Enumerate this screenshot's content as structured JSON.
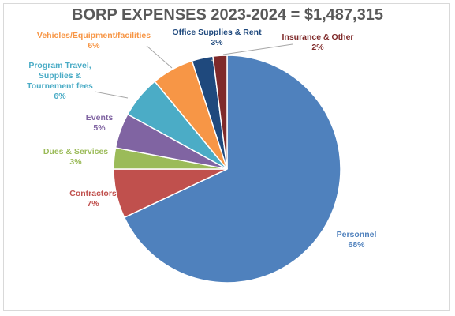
{
  "chart_data": {
    "type": "pie",
    "title": "BORP EXPENSES 2023-2024 = $1,487,315",
    "slices": [
      {
        "label": "Personnel",
        "value": 68,
        "value_label": "68%",
        "color": "#4f81bd"
      },
      {
        "label": "Contractors",
        "value": 7,
        "value_label": "7%",
        "color": "#c0504d"
      },
      {
        "label": "Dues & Services",
        "value": 3,
        "value_label": "3%",
        "color": "#9bbb59"
      },
      {
        "label": "Events",
        "value": 5,
        "value_label": "5%",
        "color": "#8064a2"
      },
      {
        "label": "Program Travel, Supplies & Tournement fees",
        "value": 6,
        "value_label": "6%",
        "color": "#4bacc6"
      },
      {
        "label": "Vehicles/Equipment/facilities",
        "value": 6,
        "value_label": "6%",
        "color": "#f79646"
      },
      {
        "label": "Office Supplies & Rent",
        "value": 3,
        "value_label": "3%",
        "color": "#1f497d"
      },
      {
        "label": "Insurance & Other",
        "value": 2,
        "value_label": "2%",
        "color": "#7f2a2a"
      }
    ],
    "legend": "none"
  }
}
